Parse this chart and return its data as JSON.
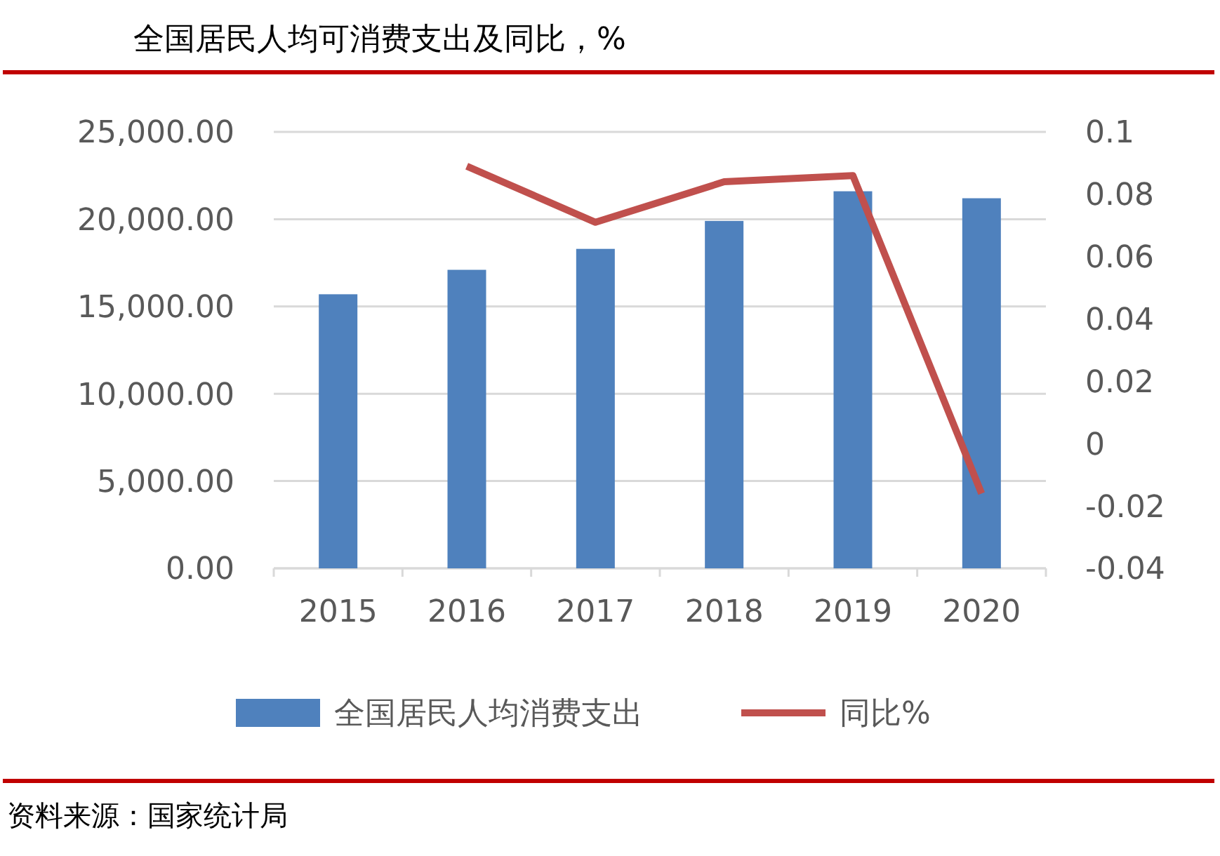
{
  "chart_data": {
    "type": "bar",
    "title": "全国居民人均可消费支出及同比，%",
    "categories": [
      "2015",
      "2016",
      "2017",
      "2018",
      "2019",
      "2020"
    ],
    "series": [
      {
        "name": "全国居民人均消费支出",
        "color": "#4f81bd",
        "values": [
          15700,
          17100,
          18300,
          19900,
          21600,
          21200
        ]
      },
      {
        "name": "同比%",
        "type": "line",
        "axis": "y2",
        "color": "#c0504d",
        "values": [
          null,
          0.089,
          0.071,
          0.084,
          0.086,
          -0.016
        ]
      }
    ],
    "ylim": [
      0,
      25000
    ],
    "yticks": [
      {
        "value": 0,
        "label": "0.00"
      },
      {
        "value": 5000,
        "label": "5,000.00"
      },
      {
        "value": 10000,
        "label": "10,000.00"
      },
      {
        "value": 15000,
        "label": "15,000.00"
      },
      {
        "value": 20000,
        "label": "20,000.00"
      },
      {
        "value": 25000,
        "label": "25,000.00"
      }
    ],
    "y2lim": [
      -0.04,
      0.1
    ],
    "y2ticks": [
      -0.04,
      -0.02,
      0,
      0.02,
      0.04,
      0.06,
      0.08,
      0.1
    ],
    "grid": "y",
    "legend": "bottom",
    "marker": "none",
    "line_style": "solid",
    "annotations": [
      "资料来源：国家统计局"
    ]
  }
}
